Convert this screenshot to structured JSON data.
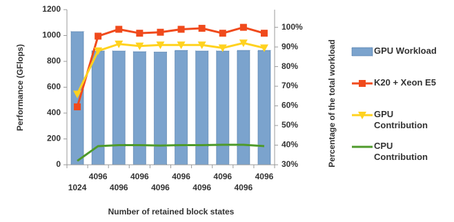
{
  "chart_data": {
    "type": "bar-line",
    "x_label": "Number of retained block states",
    "y_label": "Performance (GFlops)",
    "y2_label": "Percentage of the total workload",
    "categories": [
      "1024",
      "4096",
      "4096",
      "4096",
      "4096",
      "4096",
      "4096",
      "4096",
      "4096",
      "4096"
    ],
    "series": [
      {
        "name": "GPU Workload",
        "type": "bar",
        "color": "#7ba3cd",
        "values": [
          1030,
          880,
          880,
          875,
          872,
          885,
          880,
          880,
          885,
          885
        ]
      },
      {
        "name": "K20 + Xeon E5",
        "type": "line",
        "axis": "y2",
        "marker": "square",
        "color": "#f04a1c",
        "values": [
          59.5,
          95.5,
          99,
          97,
          97.5,
          99,
          99.5,
          97,
          100,
          97
        ]
      },
      {
        "name": "GPU Contribution",
        "type": "line",
        "axis": "y2",
        "marker": "triangle-down",
        "color": "#ffd21f",
        "values": [
          66,
          88,
          91.5,
          90.5,
          91,
          91,
          91,
          89.5,
          92,
          89.5
        ]
      },
      {
        "name": "CPU Contribution",
        "type": "line",
        "axis": "y2",
        "marker": "none",
        "color": "#4e9a2a",
        "values": [
          32,
          39.5,
          40,
          40,
          39.8,
          40,
          40,
          40.2,
          40.2,
          39.5
        ]
      }
    ],
    "ylim": [
      0,
      1200
    ],
    "yticks": [
      0,
      200,
      400,
      600,
      800,
      1000,
      1200
    ],
    "y2lim": [
      30,
      109
    ],
    "y2ticks": [
      {
        "value": 30,
        "label": "30%"
      },
      {
        "value": 40,
        "label": "40%"
      },
      {
        "value": 50,
        "label": "50%"
      },
      {
        "value": 60,
        "label": "60%"
      },
      {
        "value": 70,
        "label": "70%"
      },
      {
        "value": 80,
        "label": "80%"
      },
      {
        "value": 90,
        "label": "90%"
      },
      {
        "value": 100,
        "label": "100%"
      }
    ],
    "grid": false
  }
}
